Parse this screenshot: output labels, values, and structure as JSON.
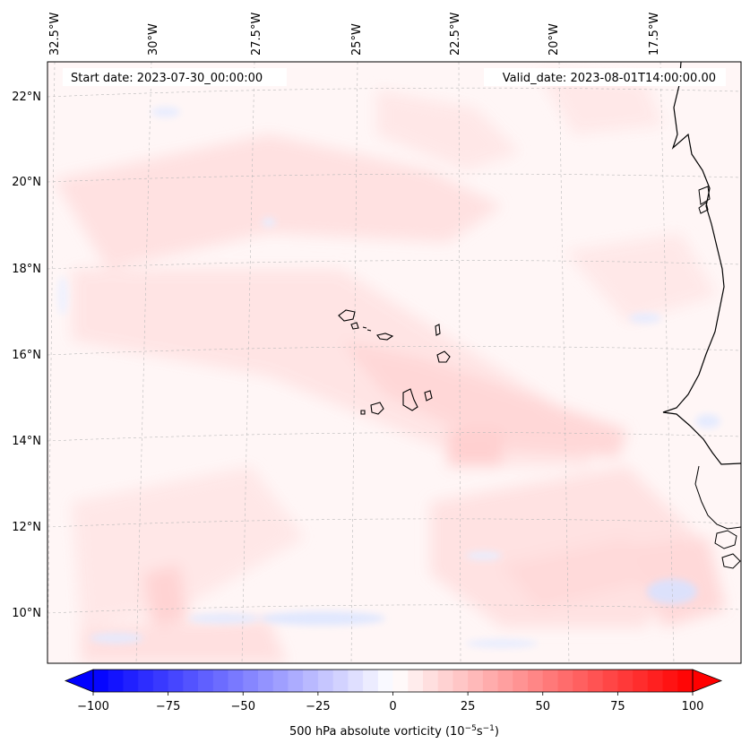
{
  "map": {
    "title_left": "Start date: 2023-07-30_00:00:00",
    "title_right": "Valid_date: 2023-08-01T14:00:00.00",
    "lon_labels": [
      "32.5°W",
      "30°W",
      "27.5°W",
      "25°W",
      "22.5°W",
      "20°W",
      "17.5°W"
    ],
    "lat_labels": [
      "22°N",
      "20°N",
      "18°N",
      "16°N",
      "14°N",
      "12°N",
      "10°N"
    ],
    "features": [
      "coastline-west-africa",
      "cape-verde-islands"
    ]
  },
  "colorbar": {
    "ticks": [
      "−100",
      "−75",
      "−50",
      "−25",
      "0",
      "25",
      "50",
      "75",
      "100"
    ],
    "label_prefix": "500 hPa absolute vorticity (10",
    "label_exp1": "−5",
    "label_mid": "s",
    "label_exp2": "−1",
    "label_suffix": ")",
    "low_color": "#0000ff",
    "mid_color": "#ffffff",
    "high_color": "#ff0000"
  }
}
